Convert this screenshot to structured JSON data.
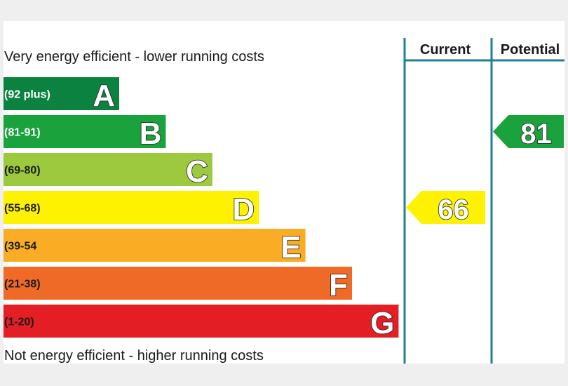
{
  "chart_data": {
    "type": "bar",
    "top_caption": "Very energy efficient - lower running costs",
    "bottom_caption": "Not energy efficient - higher running costs",
    "columns": {
      "current": "Current",
      "potential": "Potential"
    },
    "bands": [
      {
        "letter": "A",
        "range": "(92 plus)",
        "color": "#0b8240",
        "label_color": "#ffffff",
        "min": 92,
        "max": 100
      },
      {
        "letter": "B",
        "range": "(81-91)",
        "color": "#1aa23d",
        "label_color": "#ffffff",
        "min": 81,
        "max": 91
      },
      {
        "letter": "C",
        "range": "(69-80)",
        "color": "#9cc93e",
        "label_color": "#1a1a1a",
        "min": 69,
        "max": 80
      },
      {
        "letter": "D",
        "range": "(55-68)",
        "color": "#fff200",
        "label_color": "#1a1a1a",
        "min": 55,
        "max": 68
      },
      {
        "letter": "E",
        "range": "(39-54",
        "color": "#f9ac24",
        "label_color": "#1a1a1a",
        "min": 39,
        "max": 54
      },
      {
        "letter": "F",
        "range": "(21-38)",
        "color": "#ef6a26",
        "label_color": "#1a1a1a",
        "min": 21,
        "max": 38
      },
      {
        "letter": "G",
        "range": "(1-20)",
        "color": "#e31e24",
        "label_color": "#1a1a1a",
        "min": 1,
        "max": 20
      }
    ],
    "current": {
      "value": 66,
      "color": "#fff200"
    },
    "potential": {
      "value": 81,
      "color": "#1aa23d"
    },
    "divider_color": "#1e7f96"
  }
}
